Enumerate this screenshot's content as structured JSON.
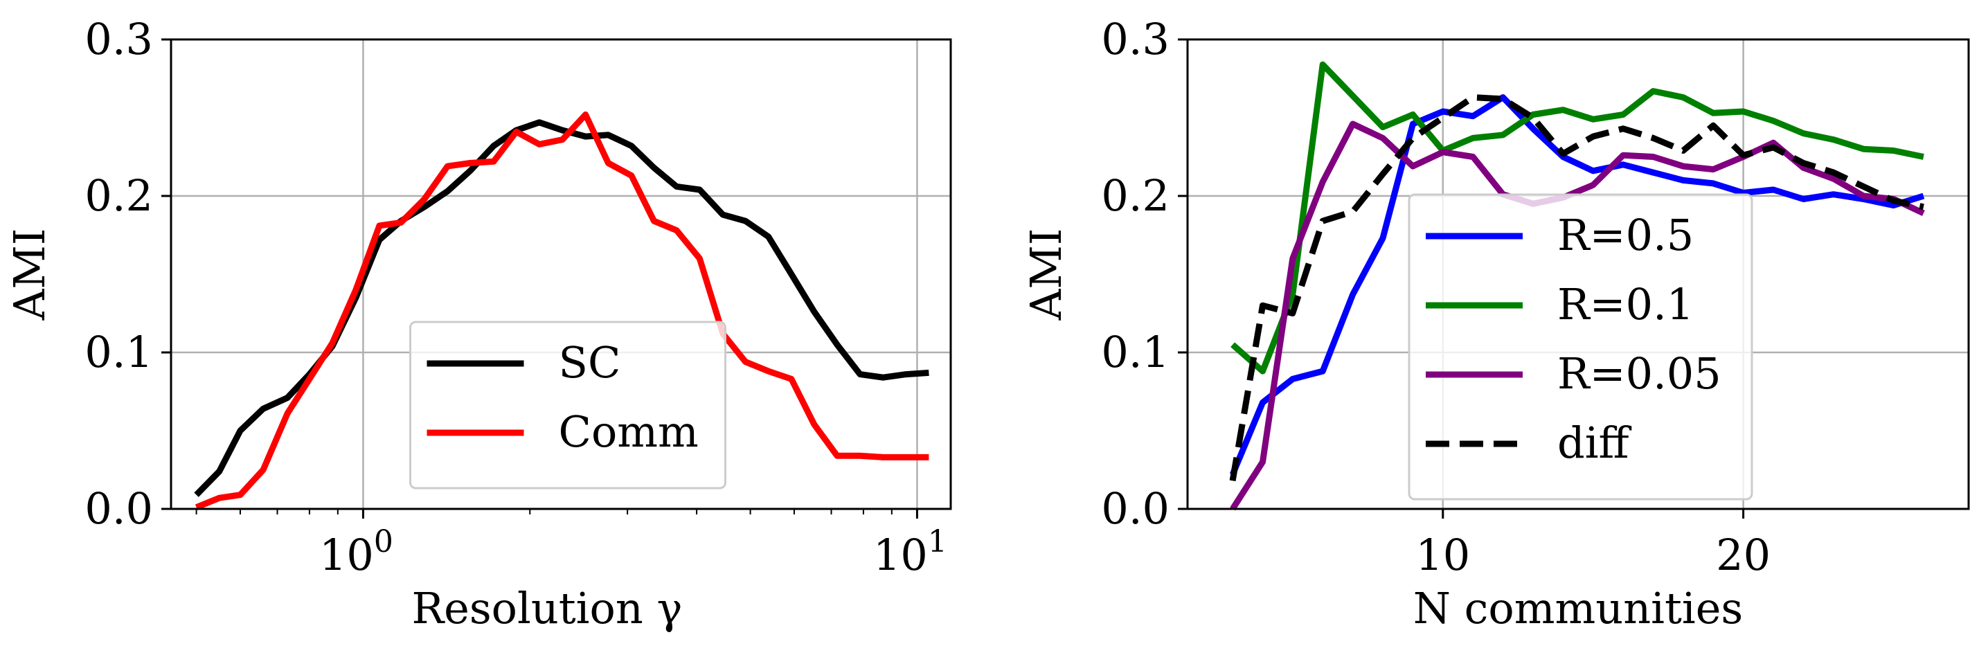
{
  "chart_data": [
    {
      "type": "line",
      "xscale": "log",
      "xlabel": "Resolution γ",
      "ylabel": "AMI",
      "xlim": [
        0.45,
        11.5
      ],
      "ylim": [
        0,
        0.3
      ],
      "xticks": [
        {
          "value": 1,
          "base": "10",
          "exp": "0"
        },
        {
          "value": 10,
          "base": "10",
          "exp": "1"
        }
      ],
      "yticks": [
        "0.0",
        "0.1",
        "0.2",
        "0.3"
      ],
      "grid": true,
      "legend": "lower-center",
      "series": [
        {
          "name": "SC",
          "color": "#000000",
          "dash": "solid",
          "x": [
            0.5,
            0.55,
            0.6,
            0.66,
            0.73,
            0.8,
            0.88,
            0.97,
            1.07,
            1.17,
            1.29,
            1.42,
            1.56,
            1.72,
            1.89,
            2.08,
            2.29,
            2.52,
            2.77,
            3.05,
            3.35,
            3.68,
            4.05,
            4.46,
            4.9,
            5.39,
            5.93,
            6.52,
            7.17,
            7.89,
            8.68,
            9.55,
            10.5
          ],
          "y": [
            0.009,
            0.024,
            0.05,
            0.064,
            0.071,
            0.086,
            0.104,
            0.135,
            0.172,
            0.184,
            0.193,
            0.203,
            0.216,
            0.232,
            0.242,
            0.247,
            0.242,
            0.238,
            0.239,
            0.232,
            0.218,
            0.206,
            0.204,
            0.188,
            0.184,
            0.174,
            0.15,
            0.126,
            0.105,
            0.086,
            0.084,
            0.086,
            0.087
          ]
        },
        {
          "name": "Comm",
          "color": "#ff0000",
          "dash": "solid",
          "x": [
            0.5,
            0.55,
            0.6,
            0.66,
            0.73,
            0.8,
            0.88,
            0.97,
            1.07,
            1.17,
            1.29,
            1.42,
            1.56,
            1.72,
            1.89,
            2.08,
            2.29,
            2.52,
            2.77,
            3.05,
            3.35,
            3.68,
            4.05,
            4.46,
            4.9,
            5.39,
            5.93,
            6.52,
            7.17,
            7.89,
            8.68,
            9.55,
            10.5
          ],
          "y": [
            0.001,
            0.007,
            0.009,
            0.025,
            0.061,
            0.083,
            0.106,
            0.14,
            0.181,
            0.183,
            0.198,
            0.219,
            0.221,
            0.222,
            0.241,
            0.233,
            0.236,
            0.252,
            0.221,
            0.213,
            0.184,
            0.178,
            0.16,
            0.112,
            0.094,
            0.088,
            0.083,
            0.054,
            0.034,
            0.034,
            0.033,
            0.033,
            0.033
          ]
        }
      ]
    },
    {
      "type": "line",
      "xscale": "linear",
      "xlabel": "N communities",
      "ylabel": "AMI",
      "xlim": [
        1.5,
        27.5
      ],
      "ylim": [
        0,
        0.3
      ],
      "xticks": [
        {
          "value": 10,
          "label": "10"
        },
        {
          "value": 20,
          "label": "20"
        }
      ],
      "yticks": [
        "0.0",
        "0.1",
        "0.2",
        "0.3"
      ],
      "grid": true,
      "legend": "center",
      "series": [
        {
          "name": "R=0.5",
          "color": "#0000ff",
          "dash": "solid",
          "x": [
            3,
            4,
            5,
            6,
            7,
            8,
            9,
            10,
            11,
            12,
            13,
            14,
            15,
            16,
            17,
            18,
            19,
            20,
            21,
            22,
            23,
            24,
            25,
            26
          ],
          "y": [
            0.022,
            0.068,
            0.083,
            0.088,
            0.137,
            0.173,
            0.246,
            0.254,
            0.251,
            0.263,
            0.243,
            0.225,
            0.216,
            0.22,
            0.215,
            0.21,
            0.208,
            0.202,
            0.204,
            0.198,
            0.201,
            0.198,
            0.194,
            0.2
          ]
        },
        {
          "name": "R=0.1",
          "color": "#008000",
          "dash": "solid",
          "x": [
            3,
            4,
            5,
            6,
            7,
            8,
            9,
            10,
            11,
            12,
            13,
            14,
            15,
            16,
            17,
            18,
            19,
            20,
            21,
            22,
            23,
            24,
            25,
            26
          ],
          "y": [
            0.105,
            0.088,
            0.137,
            0.284,
            0.264,
            0.244,
            0.252,
            0.229,
            0.237,
            0.239,
            0.252,
            0.255,
            0.249,
            0.252,
            0.267,
            0.263,
            0.253,
            0.254,
            0.248,
            0.24,
            0.236,
            0.23,
            0.229,
            0.225
          ]
        },
        {
          "name": "R=0.05",
          "color": "#800080",
          "dash": "solid",
          "x": [
            3,
            4,
            5,
            6,
            7,
            8,
            9,
            10,
            11,
            12,
            13,
            14,
            15,
            16,
            17,
            18,
            19,
            20,
            21,
            22,
            23,
            24,
            25,
            26
          ],
          "y": [
            0.0,
            0.03,
            0.16,
            0.209,
            0.246,
            0.237,
            0.219,
            0.228,
            0.225,
            0.201,
            0.195,
            0.199,
            0.207,
            0.226,
            0.225,
            0.219,
            0.217,
            0.225,
            0.234,
            0.218,
            0.211,
            0.2,
            0.198,
            0.189
          ]
        },
        {
          "name": "diff",
          "color": "#000000",
          "dash": "dashed",
          "x": [
            3,
            4,
            5,
            6,
            7,
            8,
            9,
            10,
            11,
            12,
            13,
            14,
            15,
            16,
            17,
            18,
            19,
            20,
            21,
            22,
            23,
            24,
            25,
            26
          ],
          "y": [
            0.018,
            0.13,
            0.125,
            0.184,
            0.19,
            0.214,
            0.237,
            0.25,
            0.263,
            0.262,
            0.25,
            0.227,
            0.238,
            0.243,
            0.237,
            0.229,
            0.245,
            0.226,
            0.231,
            0.221,
            0.215,
            0.206,
            0.197,
            0.193
          ]
        }
      ]
    }
  ]
}
